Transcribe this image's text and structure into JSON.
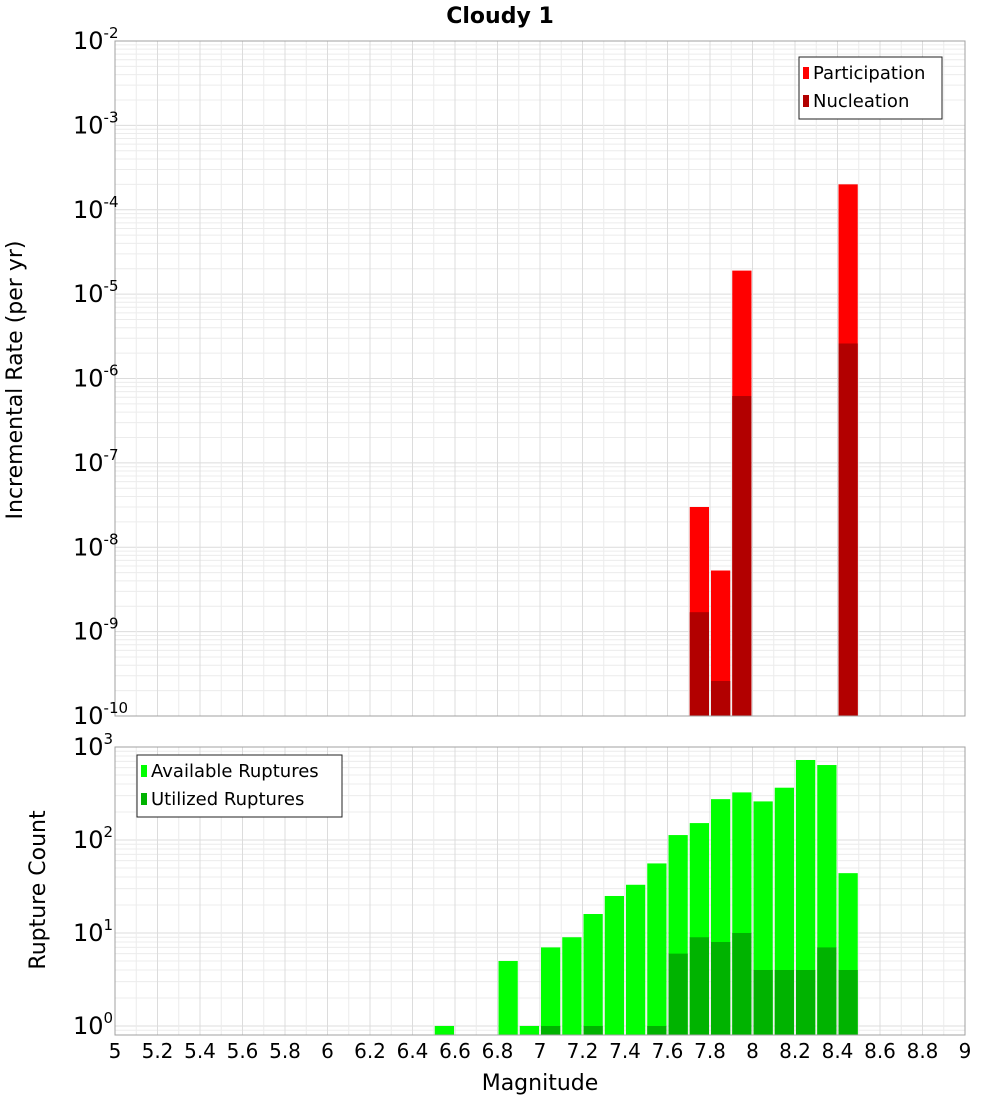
{
  "chart_data": {
    "type": "bar",
    "title": "Cloudy 1",
    "xlabel": "Magnitude",
    "xlim": [
      5,
      9
    ],
    "xticks": [
      "5",
      "5.2",
      "5.4",
      "5.6",
      "5.8",
      "6",
      "6.2",
      "6.4",
      "6.6",
      "6.8",
      "7",
      "7.2",
      "7.4",
      "7.6",
      "7.8",
      "8",
      "8.2",
      "8.4",
      "8.6",
      "8.8",
      "9"
    ],
    "bin_width": 0.1,
    "grid": true,
    "panels": [
      {
        "ylabel": "Incremental Rate (per yr)",
        "yscale": "log",
        "ylim": [
          1e-10,
          0.01
        ],
        "yticks": [
          {
            "base": "10",
            "exp": "-2"
          },
          {
            "base": "10",
            "exp": "-3"
          },
          {
            "base": "10",
            "exp": "-4"
          },
          {
            "base": "10",
            "exp": "-5"
          },
          {
            "base": "10",
            "exp": "-6"
          },
          {
            "base": "10",
            "exp": "-7"
          },
          {
            "base": "10",
            "exp": "-8"
          },
          {
            "base": "10",
            "exp": "-9"
          },
          {
            "base": "10",
            "exp": "-10"
          }
        ],
        "legend_position": "top-right",
        "series": [
          {
            "name": "Participation",
            "color": "#ff0000",
            "points": [
              {
                "x": 7.75,
                "y": 3e-08
              },
              {
                "x": 7.85,
                "y": 5.3e-09
              },
              {
                "x": 7.95,
                "y": 1.9e-05
              },
              {
                "x": 8.45,
                "y": 0.0002
              }
            ]
          },
          {
            "name": "Nucleation",
            "color": "#b20000",
            "points": [
              {
                "x": 7.75,
                "y": 1.7e-09
              },
              {
                "x": 7.85,
                "y": 2.6e-10
              },
              {
                "x": 7.95,
                "y": 6.2e-07
              },
              {
                "x": 8.45,
                "y": 2.6e-06
              }
            ]
          }
        ]
      },
      {
        "ylabel": "Rupture Count",
        "yscale": "log",
        "ylim": [
          0.8,
          1000
        ],
        "yticks": [
          {
            "base": "10",
            "exp": "3"
          },
          {
            "base": "10",
            "exp": "2"
          },
          {
            "base": "10",
            "exp": "1"
          },
          {
            "base": "10",
            "exp": "0"
          }
        ],
        "legend_position": "top-left",
        "series": [
          {
            "name": "Available Ruptures",
            "color": "#00ff00",
            "points": [
              {
                "x": 6.55,
                "y": 1
              },
              {
                "x": 6.85,
                "y": 5
              },
              {
                "x": 6.95,
                "y": 1
              },
              {
                "x": 7.05,
                "y": 7
              },
              {
                "x": 7.15,
                "y": 9
              },
              {
                "x": 7.25,
                "y": 16
              },
              {
                "x": 7.35,
                "y": 25
              },
              {
                "x": 7.45,
                "y": 33
              },
              {
                "x": 7.55,
                "y": 56
              },
              {
                "x": 7.65,
                "y": 113
              },
              {
                "x": 7.75,
                "y": 152
              },
              {
                "x": 7.85,
                "y": 275
              },
              {
                "x": 7.95,
                "y": 325
              },
              {
                "x": 8.05,
                "y": 260
              },
              {
                "x": 8.15,
                "y": 365
              },
              {
                "x": 8.25,
                "y": 725
              },
              {
                "x": 8.35,
                "y": 640
              },
              {
                "x": 8.45,
                "y": 44
              }
            ]
          },
          {
            "name": "Utilized Ruptures",
            "color": "#00b300",
            "points": [
              {
                "x": 7.05,
                "y": 1
              },
              {
                "x": 7.25,
                "y": 1
              },
              {
                "x": 7.55,
                "y": 1
              },
              {
                "x": 7.65,
                "y": 6
              },
              {
                "x": 7.75,
                "y": 9
              },
              {
                "x": 7.85,
                "y": 8
              },
              {
                "x": 7.95,
                "y": 10
              },
              {
                "x": 8.05,
                "y": 4
              },
              {
                "x": 8.15,
                "y": 4
              },
              {
                "x": 8.25,
                "y": 4
              },
              {
                "x": 8.35,
                "y": 7
              },
              {
                "x": 8.45,
                "y": 4
              }
            ]
          }
        ]
      }
    ]
  }
}
